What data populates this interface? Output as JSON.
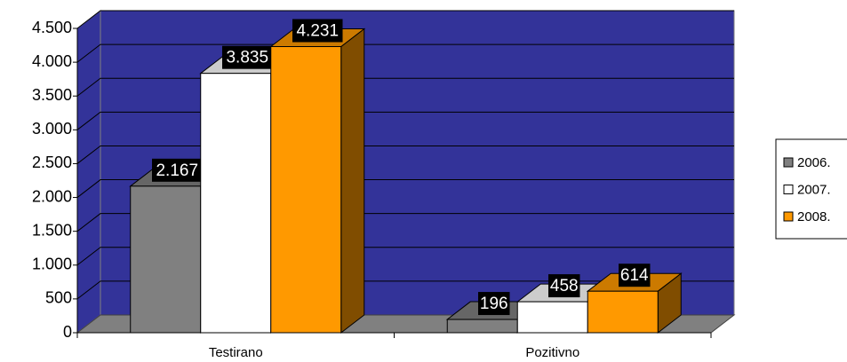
{
  "chart_data": {
    "type": "bar3d",
    "categories": [
      "Testirano",
      "Pozitivno"
    ],
    "series": [
      {
        "name": "2006.",
        "color": "#808080",
        "values": [
          2167,
          196
        ],
        "value_labels": [
          "2.167",
          "196"
        ]
      },
      {
        "name": "2007.",
        "color": "#ffffff",
        "values": [
          3835,
          458
        ],
        "value_labels": [
          "3.835",
          "458"
        ]
      },
      {
        "name": "2008.",
        "color": "#ff9900",
        "values": [
          4231,
          614
        ],
        "value_labels": [
          "4.231",
          "614"
        ]
      }
    ],
    "ylim": [
      0,
      4500
    ],
    "yticks": [
      0,
      500,
      {
        "value": 1000,
        "label": "1.000"
      },
      {
        "value": 1500,
        "label": "1.500"
      },
      {
        "value": 2000,
        "label": "2.000"
      },
      {
        "value": 2500,
        "label": "2.500"
      },
      {
        "value": 3000,
        "label": "3.000"
      },
      {
        "value": 3500,
        "label": "3.500"
      },
      {
        "value": 4000,
        "label": "4.000"
      },
      {
        "value": 4500,
        "label": "4.500"
      }
    ],
    "grid": true,
    "wall_color": "#333399",
    "legend": "right"
  }
}
